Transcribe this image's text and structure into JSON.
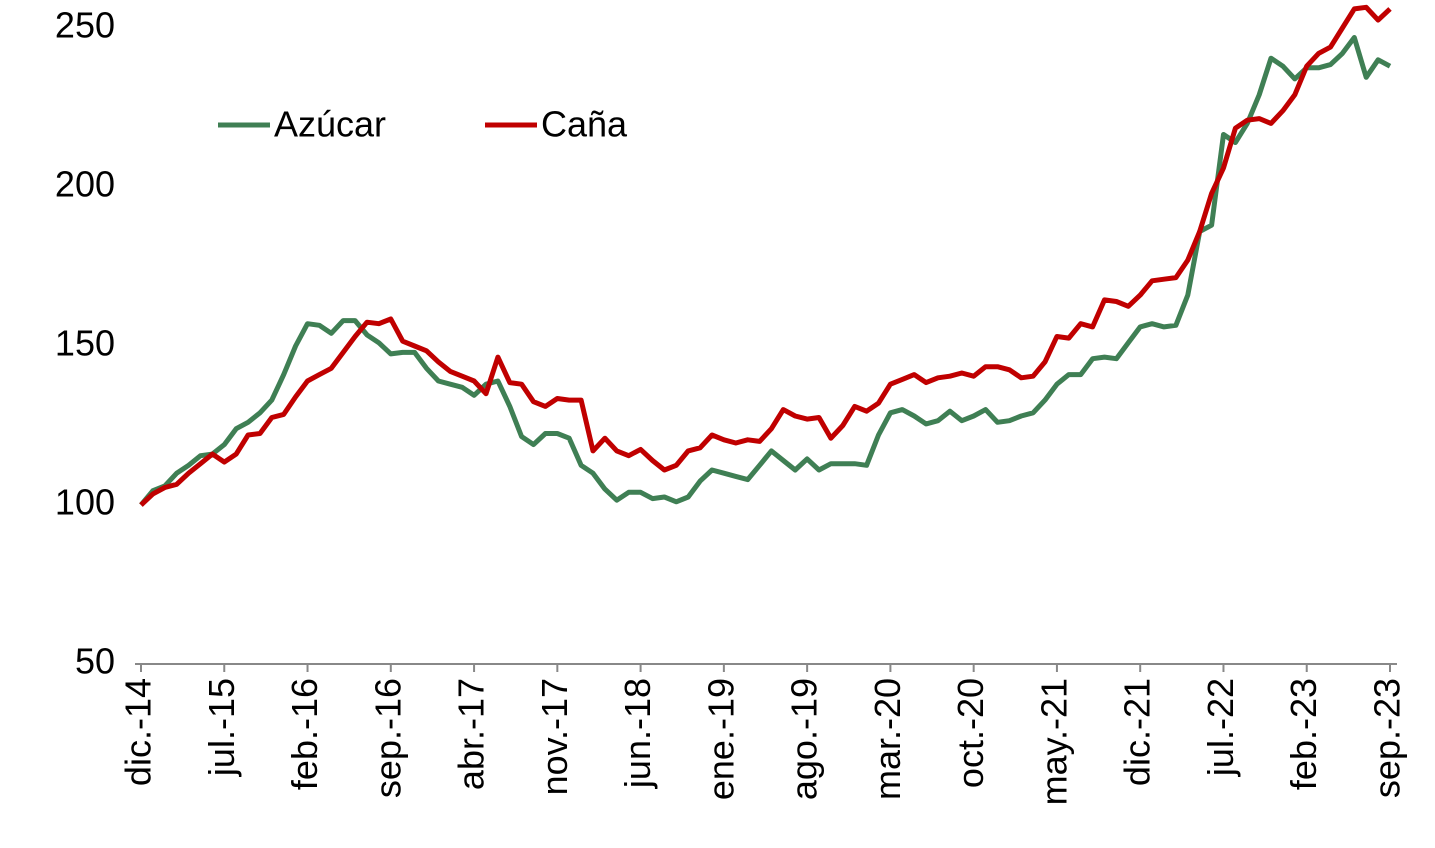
{
  "chart_data": {
    "type": "line",
    "categories": [
      "dic.-14",
      null,
      null,
      null,
      null,
      null,
      null,
      "jul.-15",
      null,
      null,
      null,
      null,
      null,
      null,
      "feb.-16",
      null,
      null,
      null,
      null,
      null,
      null,
      "sep.-16",
      null,
      null,
      null,
      null,
      null,
      null,
      "abr.-17",
      null,
      null,
      null,
      null,
      null,
      null,
      "nov.-17",
      null,
      null,
      null,
      null,
      null,
      null,
      "jun.-18",
      null,
      null,
      null,
      null,
      null,
      null,
      "ene.-19",
      null,
      null,
      null,
      null,
      null,
      null,
      "ago.-19",
      null,
      null,
      null,
      null,
      null,
      null,
      "mar.-20",
      null,
      null,
      null,
      null,
      null,
      null,
      "oct.-20",
      null,
      null,
      null,
      null,
      null,
      null,
      "may.-21",
      null,
      null,
      null,
      null,
      null,
      null,
      "dic.-21",
      null,
      null,
      null,
      null,
      null,
      null,
      "jul.-22",
      null,
      null,
      null,
      null,
      null,
      null,
      "feb.-23",
      null,
      null,
      null,
      null,
      null,
      null,
      "sep.-23"
    ],
    "series": [
      {
        "name": "Azúcar",
        "color": "#3f7f54",
        "values": [
          100,
          104.5,
          106,
          110,
          112.5,
          115.5,
          116,
          119,
          124,
          126,
          129,
          133,
          141,
          150,
          157,
          156.5,
          154,
          158,
          158,
          153.5,
          151,
          147.5,
          148,
          148,
          143,
          139,
          138,
          137,
          134.5,
          138,
          139,
          131,
          121.5,
          119,
          122.5,
          122.5,
          121,
          112.5,
          110,
          105,
          101.5,
          104,
          104,
          102,
          102.5,
          101,
          102.5,
          107.5,
          111,
          110,
          109,
          108,
          112.5,
          117,
          114,
          111,
          114.5,
          111,
          113,
          113,
          113,
          112.5,
          122,
          129,
          130,
          128,
          125.5,
          126.5,
          129.5,
          126.5,
          128,
          130,
          126,
          126.5,
          128,
          129,
          133,
          138,
          141,
          141,
          146,
          146.5,
          146,
          151,
          156,
          157,
          156,
          156.5,
          166,
          186,
          188,
          216.5,
          214,
          220,
          229,
          240.5,
          238,
          234,
          237.5,
          237.5,
          238.5,
          242,
          247,
          234.5,
          240,
          238
        ]
      },
      {
        "name": "Caña",
        "color": "#c00000",
        "values": [
          100,
          103.5,
          105.5,
          106.5,
          110,
          113,
          116,
          113.5,
          116,
          122,
          122.5,
          127.5,
          128.5,
          134,
          139,
          141,
          143,
          148,
          153,
          157.5,
          157,
          158.5,
          151.5,
          150,
          148.5,
          145,
          142,
          140.5,
          139,
          135,
          146.5,
          138.5,
          138,
          132.5,
          131,
          133.5,
          133,
          133,
          117,
          121,
          117,
          115.5,
          117.5,
          114,
          111,
          112.5,
          117,
          118,
          122,
          120.5,
          119.5,
          120.5,
          120,
          124,
          130,
          128,
          127,
          127.5,
          121,
          125,
          131,
          129.5,
          132,
          138,
          139.5,
          141,
          138.5,
          140,
          140.5,
          141.5,
          140.5,
          143.5,
          143.5,
          142.5,
          140,
          140.5,
          145,
          153,
          152.5,
          157,
          156,
          164.5,
          164,
          162.5,
          166,
          170.5,
          171,
          171.5,
          177,
          186,
          198,
          206,
          218.5,
          221,
          221.5,
          220,
          224,
          229,
          238,
          242,
          244,
          250,
          256,
          256.5,
          252.5,
          256
        ]
      }
    ],
    "ylim": [
      50,
      250
    ],
    "yticks": [
      50,
      100,
      150,
      200,
      250
    ],
    "legend": "top-left"
  }
}
